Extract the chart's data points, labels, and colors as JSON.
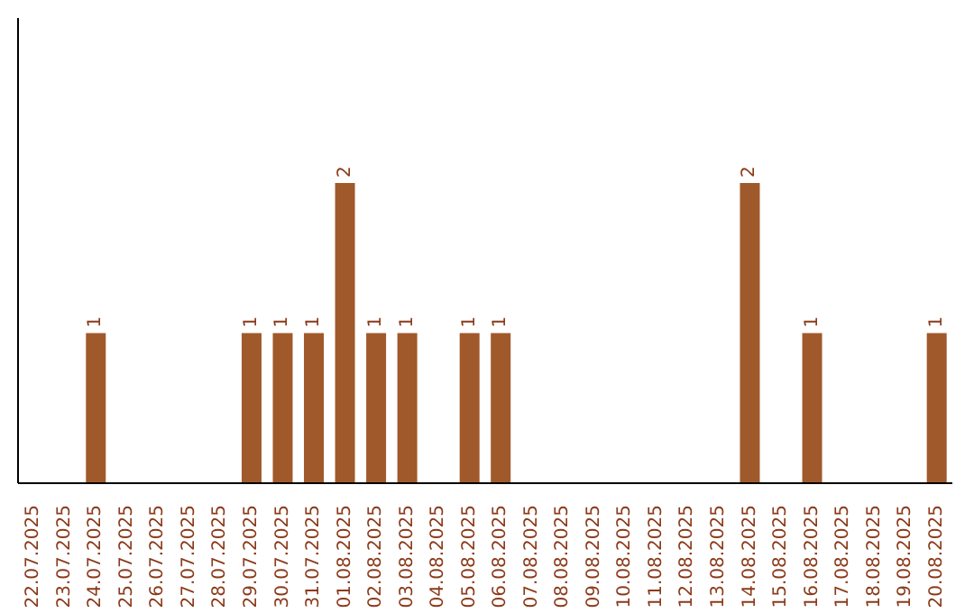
{
  "chart_data": {
    "type": "bar",
    "categories": [
      "22.07.2025",
      "23.07.2025",
      "24.07.2025",
      "25.07.2025",
      "26.07.2025",
      "27.07.2025",
      "28.07.2025",
      "29.07.2025",
      "30.07.2025",
      "31.07.2025",
      "01.08.2025",
      "02.08.2025",
      "03.08.2025",
      "04.08.2025",
      "05.08.2025",
      "06.08.2025",
      "07.08.2025",
      "08.08.2025",
      "09.08.2025",
      "10.08.2025",
      "11.08.2025",
      "12.08.2025",
      "13.08.2025",
      "14.08.2025",
      "15.08.2025",
      "16.08.2025",
      "17.08.2025",
      "18.08.2025",
      "19.08.2025",
      "20.08.2025"
    ],
    "values": [
      0,
      0,
      1,
      0,
      0,
      0,
      0,
      1,
      1,
      1,
      2,
      1,
      1,
      0,
      1,
      1,
      0,
      0,
      0,
      0,
      0,
      0,
      0,
      2,
      0,
      1,
      0,
      0,
      0,
      1
    ],
    "value_labels": [
      null,
      null,
      "1",
      null,
      null,
      null,
      null,
      "1",
      "1",
      "1",
      "2",
      "1",
      "1",
      null,
      "1",
      "1",
      null,
      null,
      null,
      null,
      null,
      null,
      null,
      "2",
      null,
      "1",
      null,
      null,
      null,
      "1"
    ],
    "color": "#a0592b",
    "ylim": [
      0,
      3.1
    ],
    "tick_labels": "x",
    "grid": false
  }
}
